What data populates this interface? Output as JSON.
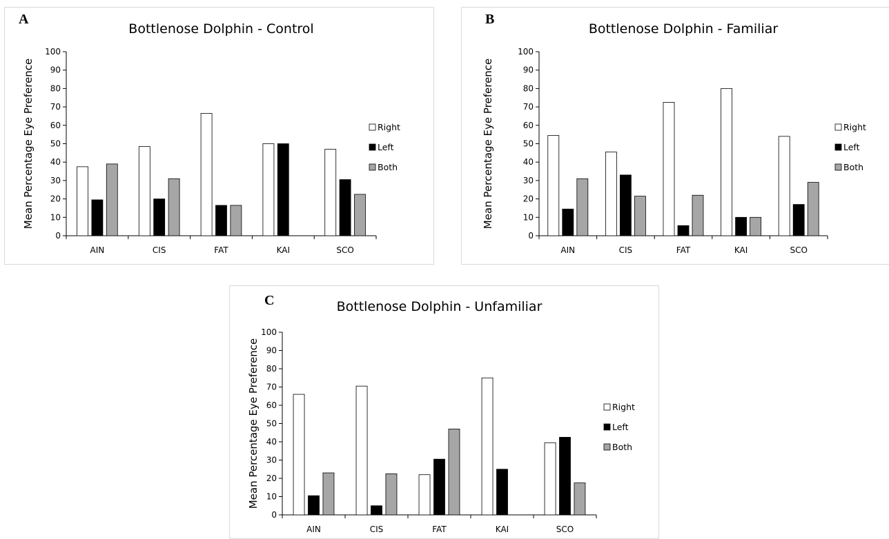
{
  "colors": {
    "Right": "#ffffff",
    "Left": "#000000",
    "Both": "#a6a6a6",
    "axis": "#000000",
    "border": "#d9d9d9"
  },
  "panels": [
    {
      "id": "A",
      "letter": "A"
    },
    {
      "id": "B",
      "letter": "B"
    },
    {
      "id": "C",
      "letter": "C"
    }
  ],
  "chart_data": [
    {
      "type": "bar",
      "panel": "A",
      "title": "Bottlenose Dolphin - Control",
      "xlabel": "",
      "ylabel": "Mean Percentage Eye Preference",
      "ylim": [
        0,
        100
      ],
      "yticks": [
        0,
        10,
        20,
        30,
        40,
        50,
        60,
        70,
        80,
        90,
        100
      ],
      "categories": [
        "AIN",
        "CIS",
        "FAT",
        "KAI",
        "SCO"
      ],
      "legend_position": "right",
      "grid": false,
      "series": [
        {
          "name": "Right",
          "values": [
            37.5,
            48.5,
            66.5,
            50,
            47
          ]
        },
        {
          "name": "Left",
          "values": [
            19.5,
            20,
            16.5,
            50,
            30.5
          ]
        },
        {
          "name": "Both",
          "values": [
            39,
            31,
            16.5,
            0,
            22.5
          ]
        }
      ]
    },
    {
      "type": "bar",
      "panel": "B",
      "title": "Bottlenose Dolphin - Familiar",
      "xlabel": "",
      "ylabel": "Mean Percentage Eye Preference",
      "ylim": [
        0,
        100
      ],
      "yticks": [
        0,
        10,
        20,
        30,
        40,
        50,
        60,
        70,
        80,
        90,
        100
      ],
      "categories": [
        "AIN",
        "CIS",
        "FAT",
        "KAI",
        "SCO"
      ],
      "legend_position": "right",
      "grid": false,
      "series": [
        {
          "name": "Right",
          "values": [
            54.5,
            45.5,
            72.5,
            80,
            54
          ]
        },
        {
          "name": "Left",
          "values": [
            14.5,
            33,
            5.5,
            10,
            17
          ]
        },
        {
          "name": "Both",
          "values": [
            31,
            21.5,
            22,
            10,
            29
          ]
        }
      ]
    },
    {
      "type": "bar",
      "panel": "C",
      "title": "Bottlenose Dolphin - Unfamiliar",
      "xlabel": "",
      "ylabel": "Mean Percentage Eye Preference",
      "ylim": [
        0,
        100
      ],
      "yticks": [
        0,
        10,
        20,
        30,
        40,
        50,
        60,
        70,
        80,
        90,
        100
      ],
      "categories": [
        "AIN",
        "CIS",
        "FAT",
        "KAI",
        "SCO"
      ],
      "legend_position": "right",
      "grid": false,
      "series": [
        {
          "name": "Right",
          "values": [
            66,
            70.5,
            22,
            75,
            39.5
          ]
        },
        {
          "name": "Left",
          "values": [
            10.5,
            5,
            30.5,
            25,
            42.5
          ]
        },
        {
          "name": "Both",
          "values": [
            23,
            22.5,
            47,
            0,
            17.5
          ]
        }
      ]
    }
  ]
}
